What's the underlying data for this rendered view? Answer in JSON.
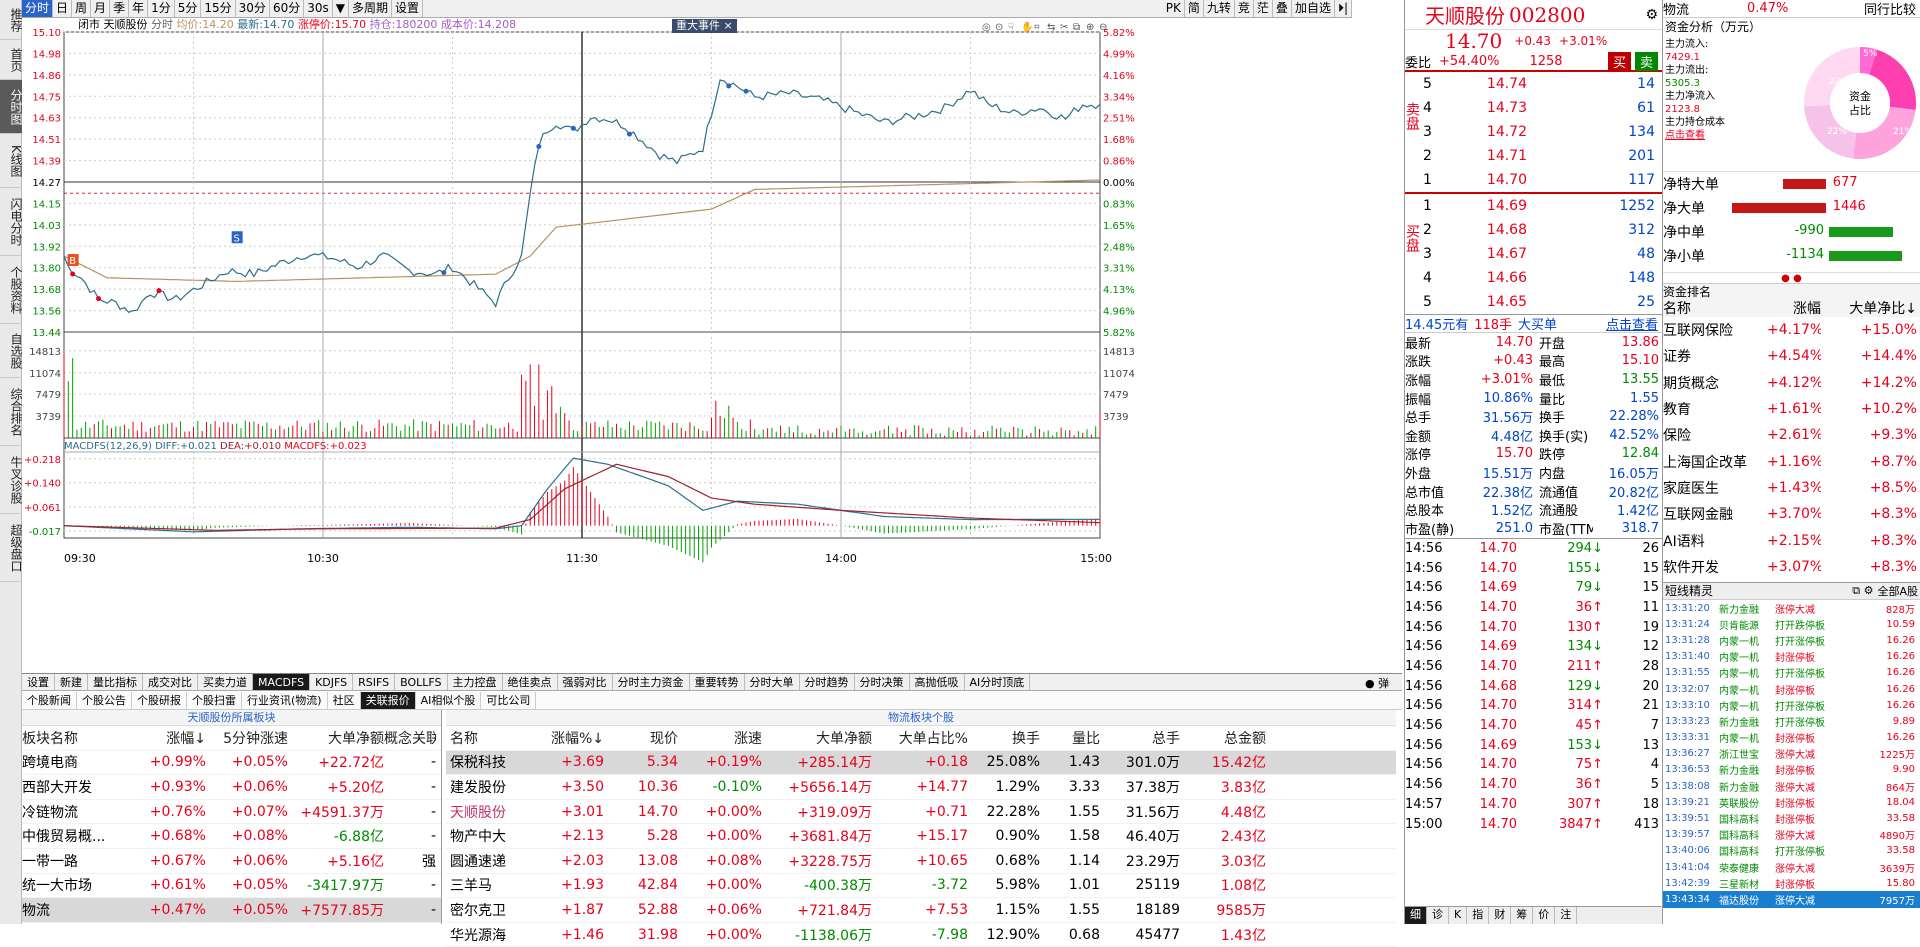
{
  "left_tabs": [
    {
      "label": "推荐",
      "active": false
    },
    {
      "label": "首页",
      "active": false
    },
    {
      "label": "分时图",
      "active": true
    },
    {
      "label": "K线图",
      "active": false
    },
    {
      "label": "闪电分时",
      "active": false
    },
    {
      "label": "个股资料",
      "active": false
    },
    {
      "label": "自选股",
      "active": false
    },
    {
      "label": "综合排名",
      "active": false
    },
    {
      "label": "牛叉诊股",
      "active": false
    },
    {
      "label": "超级盘口",
      "active": false
    }
  ],
  "toolbar": {
    "periods": [
      {
        "label": "分时",
        "active": true
      },
      {
        "label": "日",
        "active": false
      },
      {
        "label": "周",
        "active": false
      },
      {
        "label": "月",
        "active": false
      },
      {
        "label": "季",
        "active": false
      },
      {
        "label": "年",
        "active": false
      },
      {
        "label": "1分",
        "active": false
      },
      {
        "label": "5分",
        "active": false
      },
      {
        "label": "15分",
        "active": false
      },
      {
        "label": "30分",
        "active": false
      },
      {
        "label": "60分",
        "active": false
      },
      {
        "label": "30s",
        "active": false
      }
    ],
    "dropdown_arrow": "▼",
    "multi_period": "多周期",
    "settings": "设置",
    "right": [
      "PK",
      "简",
      "九转",
      "竞",
      "茫",
      "叠",
      "加自选"
    ]
  },
  "chart": {
    "info_prefix": "闭市",
    "stock_name": "天顺股份",
    "mode": "分时",
    "avg_label": "均价:",
    "avg": "14.20",
    "last_label": "最新:",
    "last": "14.70",
    "limit_label": "涨停价:",
    "limit": "15.70",
    "hold_label": "持仓:",
    "hold": "180200",
    "cost_label": "成本价:",
    "cost": "14.208",
    "event_tag": "重大事件",
    "event_close": "×",
    "price_ticks": [
      "15.10",
      "14.98",
      "14.86",
      "14.75",
      "14.63",
      "14.51",
      "14.39",
      "14.27",
      "14.15",
      "14.03",
      "13.92",
      "13.80",
      "13.68",
      "13.56",
      "13.44"
    ],
    "pct_ticks": [
      "5.82%",
      "4.99%",
      "4.16%",
      "3.34%",
      "2.51%",
      "1.68%",
      "0.86%",
      "0.00%",
      "0.83%",
      "1.65%",
      "2.48%",
      "3.31%",
      "4.13%",
      "4.96%",
      "5.82%"
    ],
    "vol_ticks": [
      "14813",
      "11074",
      "7479",
      "3739"
    ],
    "macd_label": "MACDFS(12,26,9)",
    "diff_label": "DIFF:",
    "diff": "+0.021",
    "dea_label": "DEA:",
    "dea": "+0.010",
    "macdfs_label": "MACDFS:",
    "macdfs": "+0.023",
    "macd_ticks": [
      "+0.218",
      "+0.140",
      "+0.061",
      "-0.017"
    ],
    "time_ticks": [
      "09:30",
      "10:30",
      "11:30",
      "14:00",
      "15:00"
    ],
    "markers": {
      "buy": "B",
      "sell": "S"
    },
    "colors": {
      "price": "#2b6e8c",
      "avg": "#b8935a",
      "up": "#e8001c",
      "down": "#00a000",
      "diff": "#2b6e8c",
      "dea": "#a0202c"
    }
  },
  "bottom_tabs": [
    {
      "label": "设置",
      "active": false
    },
    {
      "label": "新建",
      "active": false
    },
    {
      "label": "量比指标",
      "active": false
    },
    {
      "label": "成交对比",
      "active": false
    },
    {
      "label": "买卖力道",
      "active": false
    },
    {
      "label": "MACDFS",
      "active": true
    },
    {
      "label": "KDJFS",
      "active": false
    },
    {
      "label": "RSIFS",
      "active": false
    },
    {
      "label": "BOLLFS",
      "active": false
    },
    {
      "label": "主力控盘",
      "active": false
    },
    {
      "label": "绝佳卖点",
      "active": false
    },
    {
      "label": "强弱对比",
      "active": false
    },
    {
      "label": "分时主力资金",
      "active": false
    },
    {
      "label": "重要转势",
      "active": false
    },
    {
      "label": "分时大单",
      "active": false
    },
    {
      "label": "分时趋势",
      "active": false
    },
    {
      "label": "分时决策",
      "active": false
    },
    {
      "label": "高抛低吸",
      "active": false
    },
    {
      "label": "AI分时顶底",
      "active": false
    }
  ],
  "bottom_right": "弹",
  "sub_tabs": [
    {
      "label": "个股新闻",
      "active": false
    },
    {
      "label": "个股公告",
      "active": false
    },
    {
      "label": "个股研报",
      "active": false
    },
    {
      "label": "个股扫雷",
      "active": false
    },
    {
      "label": "行业资讯(物流)",
      "active": false
    },
    {
      "label": "社区",
      "active": false
    },
    {
      "label": "关联报价",
      "active": true
    },
    {
      "label": "AI相似个股",
      "active": false
    },
    {
      "label": "可比公司",
      "active": false
    }
  ],
  "sector_panel": {
    "title": "天顺股份所属板块",
    "headers": [
      "板块名称",
      "涨幅↓",
      "5分钟涨速",
      "大单净额",
      "概念关联"
    ],
    "rows": [
      {
        "name": "跨境电商",
        "chg": "+0.99%",
        "speed": "+0.05%",
        "net": "+22.72亿",
        "rel": "-"
      },
      {
        "name": "西部大开发",
        "chg": "+0.93%",
        "speed": "+0.06%",
        "net": "+5.20亿",
        "rel": "-"
      },
      {
        "name": "冷链物流",
        "chg": "+0.76%",
        "speed": "+0.07%",
        "net": "+4591.37万",
        "rel": "-"
      },
      {
        "name": "中俄贸易概...",
        "chg": "+0.68%",
        "speed": "+0.08%",
        "net": "-6.88亿",
        "rel": "-"
      },
      {
        "name": "一带一路",
        "chg": "+0.67%",
        "speed": "+0.06%",
        "net": "+5.16亿",
        "rel": "强"
      },
      {
        "name": "统一大市场",
        "chg": "+0.61%",
        "speed": "+0.05%",
        "net": "-3417.97万",
        "rel": "-"
      },
      {
        "name": "物流",
        "chg": "+0.47%",
        "speed": "+0.05%",
        "net": "+7577.85万",
        "rel": "-"
      }
    ]
  },
  "stocks_panel": {
    "title": "物流板块个股",
    "headers": [
      "名称",
      "涨幅%↓",
      "现价",
      "涨速",
      "大单净额",
      "大单占比%",
      "换手",
      "量比",
      "总手",
      "总金额"
    ],
    "rows": [
      {
        "name": "保税科技",
        "chg": "+3.69",
        "price": "5.34",
        "speed": "+0.19%",
        "net": "+285.14万",
        "ratio": "+0.18",
        "turn": "25.08%",
        "vr": "1.43",
        "vol": "301.0万",
        "amt": "15.42亿"
      },
      {
        "name": "建发股份",
        "chg": "+3.50",
        "price": "10.36",
        "speed": "-0.10%",
        "net": "+5656.14万",
        "ratio": "+14.77",
        "turn": "1.29%",
        "vr": "3.33",
        "vol": "37.38万",
        "amt": "3.83亿"
      },
      {
        "name": "天顺股份",
        "chg": "+3.01",
        "price": "14.70",
        "speed": "+0.00%",
        "net": "+319.09万",
        "ratio": "+0.71",
        "turn": "22.28%",
        "vr": "1.55",
        "vol": "31.56万",
        "amt": "4.48亿"
      },
      {
        "name": "物产中大",
        "chg": "+2.13",
        "price": "5.28",
        "speed": "+0.00%",
        "net": "+3681.84万",
        "ratio": "+15.17",
        "turn": "0.90%",
        "vr": "1.58",
        "vol": "46.40万",
        "amt": "2.43亿"
      },
      {
        "name": "圆通速递",
        "chg": "+2.03",
        "price": "13.08",
        "speed": "+0.08%",
        "net": "+3228.75万",
        "ratio": "+10.65",
        "turn": "0.68%",
        "vr": "1.14",
        "vol": "23.29万",
        "amt": "3.03亿"
      },
      {
        "name": "三羊马",
        "chg": "+1.93",
        "price": "42.84",
        "speed": "+0.00%",
        "net": "-400.38万",
        "ratio": "-3.72",
        "turn": "5.98%",
        "vr": "1.01",
        "vol": "25119",
        "amt": "1.08亿"
      },
      {
        "name": "密尔克卫",
        "chg": "+1.87",
        "price": "52.88",
        "speed": "+0.06%",
        "net": "+721.84万",
        "ratio": "+7.53",
        "turn": "1.15%",
        "vr": "1.55",
        "vol": "18189",
        "amt": "9585万"
      },
      {
        "name": "华光源海",
        "chg": "+1.46",
        "price": "31.98",
        "speed": "+0.00%",
        "net": "-1138.06万",
        "ratio": "-7.98",
        "turn": "12.90%",
        "vr": "0.68",
        "vol": "45477",
        "amt": "1.43亿"
      }
    ]
  },
  "quote": {
    "name": "天顺股份",
    "code": "002800",
    "price": "14.70",
    "chg": "+0.43",
    "pct": "+3.01%",
    "weibi_label": "委比",
    "weibi": "+54.40%",
    "weicha": "1258",
    "buy_btn": "买",
    "sell_btn": "卖",
    "sell_label": "卖盘",
    "buy_label": "买盘",
    "asks": [
      {
        "lv": "5",
        "p": "14.74",
        "v": "14"
      },
      {
        "lv": "4",
        "p": "14.73",
        "v": "61"
      },
      {
        "lv": "3",
        "p": "14.72",
        "v": "134"
      },
      {
        "lv": "2",
        "p": "14.71",
        "v": "201"
      },
      {
        "lv": "1",
        "p": "14.70",
        "v": "117"
      }
    ],
    "bids": [
      {
        "lv": "1",
        "p": "14.69",
        "v": "1252"
      },
      {
        "lv": "2",
        "p": "14.68",
        "v": "312"
      },
      {
        "lv": "3",
        "p": "14.67",
        "v": "48"
      },
      {
        "lv": "4",
        "p": "14.66",
        "v": "148"
      },
      {
        "lv": "5",
        "p": "14.65",
        "v": "25"
      }
    ],
    "bigbuy_price": "14.45元有",
    "bigbuy_vol": "118手",
    "bigbuy_label": "大买单",
    "bigbuy_link": "点击查看",
    "stats": [
      [
        "最新",
        "14.70",
        "开盘",
        "13.86"
      ],
      [
        "涨跌",
        "+0.43",
        "最高",
        "15.10"
      ],
      [
        "涨幅",
        "+3.01%",
        "最低",
        "13.55"
      ],
      [
        "振幅",
        "10.86%",
        "量比",
        "1.55"
      ],
      [
        "总手",
        "31.56万",
        "换手",
        "22.28%"
      ],
      [
        "金额",
        "4.48亿",
        "换手(实)",
        "42.52%"
      ],
      [
        "涨停",
        "15.70",
        "跌停",
        "12.84"
      ],
      [
        "外盘",
        "15.51万",
        "内盘",
        "16.05万"
      ],
      [
        "总市值",
        "22.38亿",
        "流通值",
        "20.82亿"
      ],
      [
        "总股本",
        "1.52亿",
        "流通股",
        "1.42亿"
      ],
      [
        "市盈(静)",
        "251.0",
        "市盈(TTM)",
        "318.7"
      ]
    ],
    "ticks": [
      {
        "t": "14:56",
        "p": "14.70",
        "v": "294",
        "d": "dn",
        "n": "26"
      },
      {
        "t": "14:56",
        "p": "14.70",
        "v": "155",
        "d": "dn",
        "n": "15"
      },
      {
        "t": "14:56",
        "p": "14.69",
        "v": "79",
        "d": "dn",
        "n": "15"
      },
      {
        "t": "14:56",
        "p": "14.70",
        "v": "36",
        "d": "up",
        "n": "11"
      },
      {
        "t": "14:56",
        "p": "14.70",
        "v": "130",
        "d": "up",
        "n": "19"
      },
      {
        "t": "14:56",
        "p": "14.69",
        "v": "134",
        "d": "dn",
        "n": "12"
      },
      {
        "t": "14:56",
        "p": "14.70",
        "v": "211",
        "d": "up",
        "n": "28"
      },
      {
        "t": "14:56",
        "p": "14.68",
        "v": "129",
        "d": "dn",
        "n": "20"
      },
      {
        "t": "14:56",
        "p": "14.70",
        "v": "314",
        "d": "up",
        "n": "21"
      },
      {
        "t": "14:56",
        "p": "14.70",
        "v": "45",
        "d": "up",
        "n": "7"
      },
      {
        "t": "14:56",
        "p": "14.69",
        "v": "153",
        "d": "dn",
        "n": "13"
      },
      {
        "t": "14:56",
        "p": "14.70",
        "v": "75",
        "d": "up",
        "n": "4"
      },
      {
        "t": "14:56",
        "p": "14.70",
        "v": "36",
        "d": "up",
        "n": "5"
      },
      {
        "t": "14:57",
        "p": "14.70",
        "v": "307",
        "d": "up",
        "n": "18"
      },
      {
        "t": "15:00",
        "p": "14.70",
        "v": "3847",
        "d": "up",
        "n": "413"
      }
    ],
    "bottom_tabs": [
      "细",
      "诊",
      "K",
      "指",
      "财",
      "筹",
      "价",
      "注"
    ]
  },
  "flow": {
    "sector": "物流",
    "sector_pct": "0.47%",
    "compare": "同行比较",
    "title": "资金分析（万元）",
    "in_label": "主力流入:",
    "in": "7429.1",
    "out_label": "主力流出:",
    "out": "5305.3",
    "net_label": "主力净流入",
    "net": "2123.8",
    "cost_label": "主力持仓成本",
    "cost_link": "点击查看",
    "donut_label": "资金占比",
    "donut_pcts": [
      "5%",
      "22%",
      "22%",
      "21%"
    ],
    "net_rows": [
      {
        "label": "净特大单",
        "val": "677",
        "frac": 0.46,
        "c": "red"
      },
      {
        "label": "净大单",
        "val": "1446",
        "frac": 1.0,
        "c": "red"
      },
      {
        "label": "净中单",
        "val": "-990",
        "frac": 0.68,
        "c": "grn"
      },
      {
        "label": "净小单",
        "val": "-1134",
        "frac": 0.78,
        "c": "grn"
      }
    ],
    "rank_title": "资金排名",
    "rank_headers": [
      "名称",
      "涨幅",
      "大单净比↓"
    ],
    "ranks": [
      {
        "n": "互联网保险",
        "c": "+4.17%",
        "r": "+15.0%"
      },
      {
        "n": "证券",
        "c": "+4.54%",
        "r": "+14.4%"
      },
      {
        "n": "期货概念",
        "c": "+4.12%",
        "r": "+14.2%"
      },
      {
        "n": "教育",
        "c": "+1.61%",
        "r": "+10.2%"
      },
      {
        "n": "保险",
        "c": "+2.61%",
        "r": "+9.3%"
      },
      {
        "n": "上海国企改革",
        "c": "+1.16%",
        "r": "+8.7%"
      },
      {
        "n": "家庭医生",
        "c": "+1.43%",
        "r": "+8.5%"
      },
      {
        "n": "互联网金融",
        "c": "+3.70%",
        "r": "+8.3%"
      },
      {
        "n": "AI语料",
        "c": "+2.15%",
        "r": "+8.3%"
      },
      {
        "n": "软件开发",
        "c": "+3.07%",
        "r": "+8.3%"
      }
    ],
    "sprite_title": "短线精灵",
    "sprite_filter": "全部A股",
    "sprites": [
      {
        "t": "13:31:20",
        "n": "新力金融",
        "e": "涨停大减",
        "v": "828万"
      },
      {
        "t": "13:31:24",
        "n": "贝肯能源",
        "e": "打开跌停板",
        "v": "10.59"
      },
      {
        "t": "13:31:28",
        "n": "内蒙一机",
        "e": "打开涨停板",
        "v": "16.26"
      },
      {
        "t": "13:31:40",
        "n": "内蒙一机",
        "e": "封涨停板",
        "v": "16.26"
      },
      {
        "t": "13:31:55",
        "n": "内蒙一机",
        "e": "打开涨停板",
        "v": "16.26"
      },
      {
        "t": "13:32:07",
        "n": "内蒙一机",
        "e": "封涨停板",
        "v": "16.26"
      },
      {
        "t": "13:33:10",
        "n": "内蒙一机",
        "e": "打开涨停板",
        "v": "16.26"
      },
      {
        "t": "13:33:23",
        "n": "新力金融",
        "e": "打开涨停板",
        "v": "9.89"
      },
      {
        "t": "13:33:31",
        "n": "内蒙一机",
        "e": "封涨停板",
        "v": "16.26"
      },
      {
        "t": "13:36:27",
        "n": "浙江世宝",
        "e": "涨停大减",
        "v": "1225万"
      },
      {
        "t": "13:36:53",
        "n": "新力金融",
        "e": "封涨停板",
        "v": "9.90"
      },
      {
        "t": "13:38:08",
        "n": "新力金融",
        "e": "涨停大减",
        "v": "864万"
      },
      {
        "t": "13:39:21",
        "n": "英联股份",
        "e": "封涨停板",
        "v": "18.04"
      },
      {
        "t": "13:39:51",
        "n": "国科高科",
        "e": "封涨停板",
        "v": "33.58"
      },
      {
        "t": "13:39:57",
        "n": "国科高科",
        "e": "涨停大减",
        "v": "4890万"
      },
      {
        "t": "13:40:06",
        "n": "国科高科",
        "e": "打开涨停板",
        "v": "33.58"
      },
      {
        "t": "13:41:04",
        "n": "荣泰健康",
        "e": "涨停大减",
        "v": "3639万"
      },
      {
        "t": "13:42:39",
        "n": "三星新材",
        "e": "封涨停板",
        "v": "15.80"
      },
      {
        "t": "13:43:34",
        "n": "福达股份",
        "e": "涨停大减",
        "v": "7957万"
      }
    ]
  }
}
